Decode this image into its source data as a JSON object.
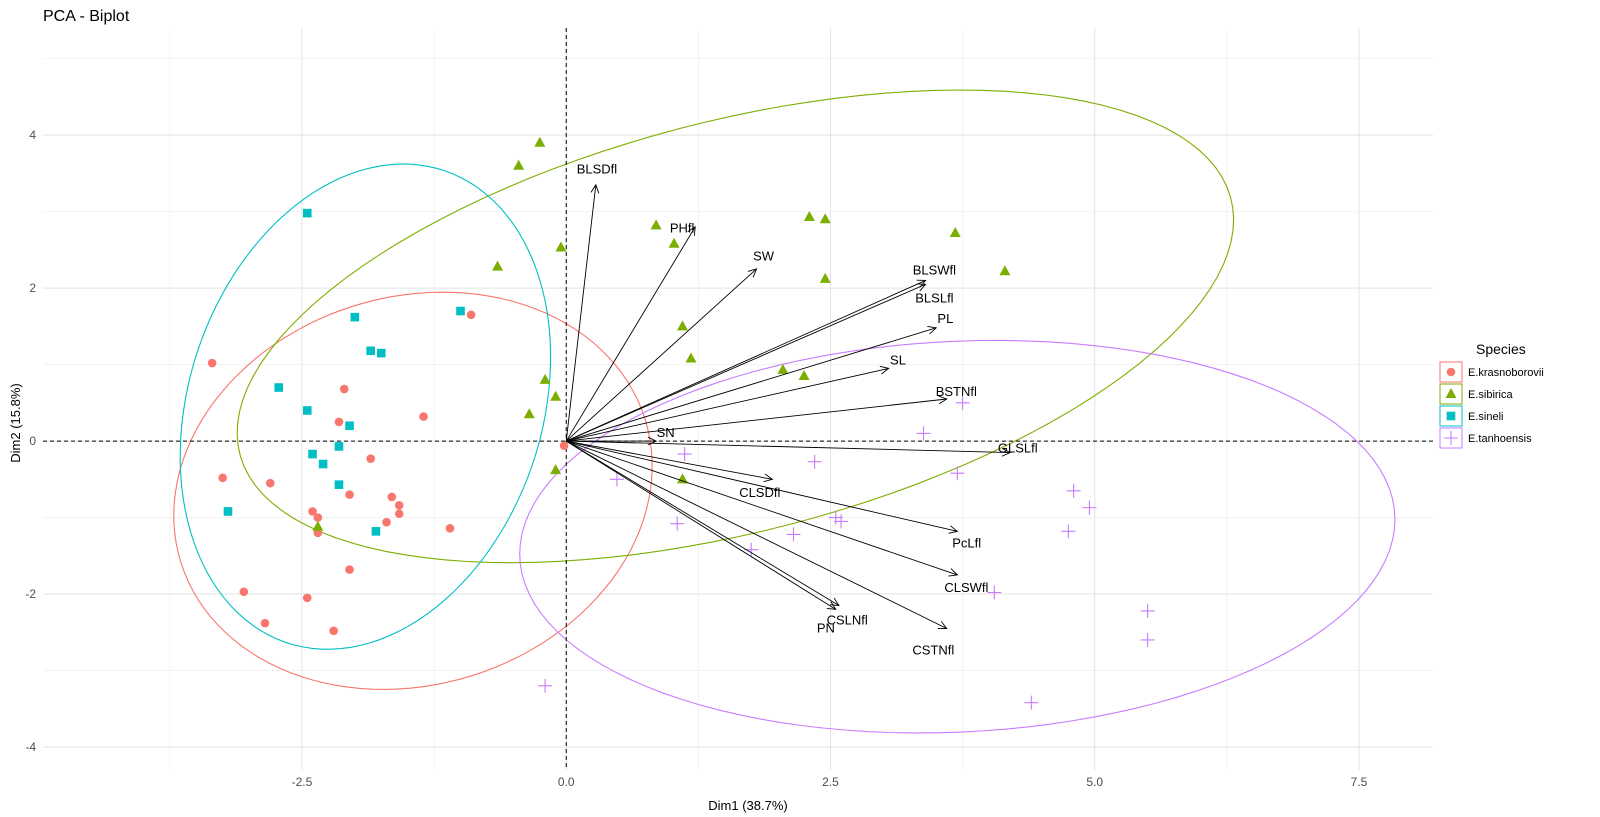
{
  "chart_data": {
    "type": "scatter",
    "title": "PCA - Biplot",
    "xlabel": "Dim1 (38.7%)",
    "ylabel": "Dim2 (15.8%)",
    "xlim": [
      -4.95,
      8.2
    ],
    "ylim": [
      -4.3,
      5.4
    ],
    "xticks": [
      -2.5,
      0.0,
      2.5,
      5.0,
      7.5
    ],
    "xtick_labels": [
      "-2.5",
      "0.0",
      "2.5",
      "5.0",
      "7.5"
    ],
    "yticks": [
      -4,
      -2,
      0,
      2,
      4
    ],
    "ytick_labels": [
      "-4",
      "-2",
      "0",
      "2",
      "4"
    ],
    "grid": true,
    "reference_lines": {
      "x": 0,
      "y": 0,
      "style": "dashed"
    },
    "legend": {
      "title": "Species",
      "position": "right"
    },
    "series": [
      {
        "name": "E.krasnoborovii",
        "color": "#F8766D",
        "marker": "circle",
        "points": [
          [
            -3.35,
            1.02
          ],
          [
            -3.25,
            -0.48
          ],
          [
            -2.8,
            -0.55
          ],
          [
            -3.05,
            -1.97
          ],
          [
            -2.85,
            -2.38
          ],
          [
            -2.45,
            -2.05
          ],
          [
            -2.2,
            -2.48
          ],
          [
            -2.4,
            -0.92
          ],
          [
            -2.35,
            -1.0
          ],
          [
            -2.35,
            -1.2
          ],
          [
            -2.15,
            0.25
          ],
          [
            -2.1,
            0.68
          ],
          [
            -2.05,
            -0.7
          ],
          [
            -2.05,
            -1.68
          ],
          [
            -1.85,
            -0.23
          ],
          [
            -1.7,
            -1.06
          ],
          [
            -1.65,
            -0.73
          ],
          [
            -1.58,
            -0.84
          ],
          [
            -1.58,
            -0.95
          ],
          [
            -1.35,
            0.32
          ],
          [
            -1.1,
            -1.14
          ],
          [
            -0.9,
            1.65
          ],
          [
            -0.02,
            -0.06
          ]
        ]
      },
      {
        "name": "E.sibirica",
        "color": "#7CAE00",
        "marker": "triangle",
        "points": [
          [
            -0.25,
            3.9
          ],
          [
            -0.45,
            3.6
          ],
          [
            -0.65,
            2.28
          ],
          [
            -0.05,
            2.53
          ],
          [
            -0.35,
            0.35
          ],
          [
            -0.2,
            0.8
          ],
          [
            -0.1,
            0.58
          ],
          [
            -0.1,
            -0.38
          ],
          [
            0.85,
            2.82
          ],
          [
            1.02,
            2.58
          ],
          [
            1.1,
            1.5
          ],
          [
            1.18,
            1.08
          ],
          [
            1.1,
            -0.5
          ],
          [
            2.05,
            0.93
          ],
          [
            2.25,
            0.85
          ],
          [
            2.3,
            2.93
          ],
          [
            2.45,
            2.9
          ],
          [
            2.45,
            2.12
          ],
          [
            3.68,
            2.72
          ],
          [
            4.15,
            2.22
          ],
          [
            -2.35,
            -1.12
          ]
        ]
      },
      {
        "name": "E.sineli",
        "color": "#00BFC4",
        "marker": "square",
        "points": [
          [
            -2.45,
            2.98
          ],
          [
            -2.72,
            0.7
          ],
          [
            -2.45,
            0.4
          ],
          [
            -2.4,
            -0.17
          ],
          [
            -2.3,
            -0.3
          ],
          [
            -2.15,
            -0.07
          ],
          [
            -2.15,
            -0.57
          ],
          [
            -2.05,
            0.2
          ],
          [
            -2.0,
            1.62
          ],
          [
            -1.85,
            1.18
          ],
          [
            -1.75,
            1.15
          ],
          [
            -1.8,
            -1.18
          ],
          [
            -3.2,
            -0.92
          ],
          [
            -1.0,
            1.7
          ]
        ]
      },
      {
        "name": "E.tanhoensis",
        "color": "#C77CFF",
        "marker": "plus",
        "points": [
          [
            0.48,
            -0.5
          ],
          [
            1.12,
            -0.17
          ],
          [
            1.05,
            -1.08
          ],
          [
            1.75,
            -1.42
          ],
          [
            2.15,
            -1.22
          ],
          [
            2.35,
            -0.27
          ],
          [
            2.55,
            -1.0
          ],
          [
            2.6,
            -1.05
          ],
          [
            3.38,
            0.1
          ],
          [
            3.75,
            0.5
          ],
          [
            3.7,
            -0.42
          ],
          [
            4.05,
            -1.98
          ],
          [
            4.4,
            -3.42
          ],
          [
            4.75,
            -1.18
          ],
          [
            4.8,
            -0.65
          ],
          [
            4.95,
            -0.87
          ],
          [
            5.5,
            -2.22
          ],
          [
            5.5,
            -2.6
          ],
          [
            -0.2,
            -3.2
          ]
        ]
      }
    ],
    "ellipses": [
      {
        "group": "E.krasnoborovii",
        "cx": -1.45,
        "cy": -0.65,
        "rx": 2.2,
        "ry": 2.65,
        "angle": -21
      },
      {
        "group": "E.sibirica",
        "cx": 1.6,
        "cy": 1.5,
        "rx": 5.0,
        "ry": 2.6,
        "angle": 23
      },
      {
        "group": "E.sineli",
        "cx": -1.9,
        "cy": 0.45,
        "rx": 1.7,
        "ry": 3.2,
        "angle": -9
      },
      {
        "group": "E.tanhoensis",
        "cx": 3.7,
        "cy": -1.25,
        "rx": 4.15,
        "ry": 2.55,
        "angle": 5
      }
    ],
    "variables": [
      {
        "name": "BLSDfl",
        "x": 0.28,
        "y": 3.35
      },
      {
        "name": "PHfl",
        "x": 1.22,
        "y": 2.8
      },
      {
        "name": "SW",
        "x": 1.8,
        "y": 2.25
      },
      {
        "name": "BLSWfl",
        "x": 3.4,
        "y": 2.1
      },
      {
        "name": "BLSLfl",
        "x": 3.4,
        "y": 2.05
      },
      {
        "name": "PL",
        "x": 3.5,
        "y": 1.48
      },
      {
        "name": "SL",
        "x": 3.05,
        "y": 0.95
      },
      {
        "name": "BSTNfl",
        "x": 3.6,
        "y": 0.55
      },
      {
        "name": "SN",
        "x": 0.85,
        "y": 0.0
      },
      {
        "name": "GLSLfl",
        "x": 4.2,
        "y": -0.15
      },
      {
        "name": "CLSDfl",
        "x": 1.95,
        "y": -0.5
      },
      {
        "name": "PcLfl",
        "x": 3.7,
        "y": -1.18
      },
      {
        "name": "CLSWfl",
        "x": 3.7,
        "y": -1.75
      },
      {
        "name": "CSLNfl",
        "x": 2.58,
        "y": -2.15
      },
      {
        "name": "PN",
        "x": 2.55,
        "y": -2.2
      },
      {
        "name": "CSTNfl",
        "x": 3.6,
        "y": -2.45
      }
    ]
  }
}
